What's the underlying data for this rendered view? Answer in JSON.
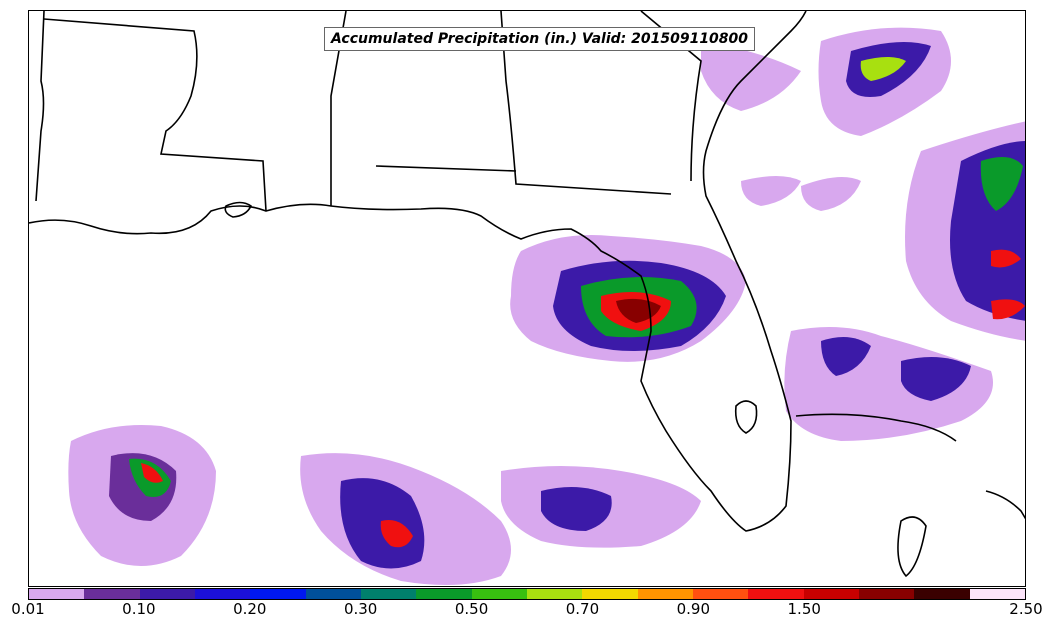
{
  "map": {
    "title": "Accumulated Precipitation (in.) Valid: 201509110800",
    "field": "accumulated-precipitation",
    "units": "in.",
    "valid_time": "201509110800",
    "region": "Southeastern United States and Gulf of Mexico",
    "coastline_color": "#000000"
  },
  "colorbar": {
    "colors": [
      "#d8a8ee",
      "#6a2e9a",
      "#3c1aa8",
      "#1c10d8",
      "#0018f0",
      "#00509a",
      "#00806c",
      "#0a9a2a",
      "#38c010",
      "#a8e010",
      "#f2d800",
      "#ff9400",
      "#ff5010",
      "#f01010",
      "#c80000",
      "#880000",
      "#3a0000",
      "#fce4fa"
    ],
    "tick_labels": [
      "0.01",
      "0.10",
      "0.20",
      "0.30",
      "0.50",
      "0.70",
      "0.90",
      "1.50",
      "2.50"
    ]
  }
}
